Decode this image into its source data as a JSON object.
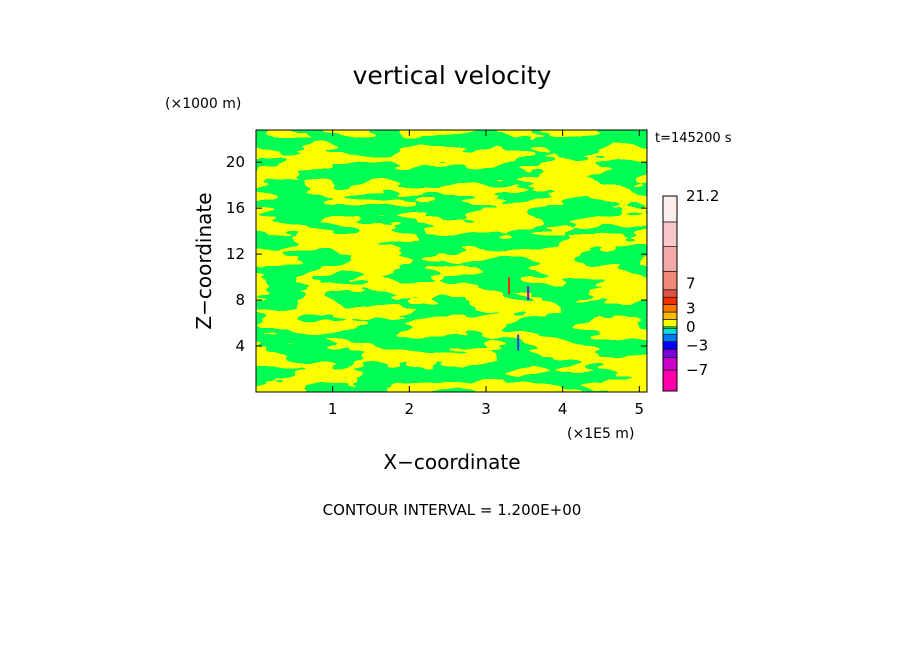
{
  "chart_data": {
    "type": "heatmap",
    "title": "vertical velocity",
    "xlabel": "X−coordinate",
    "ylabel": "Z−coordinate",
    "x_unit": "(×1E5 m)",
    "y_unit": "(×1000 m)",
    "time_label": "t=145200 s",
    "xlim": [
      0,
      5.1
    ],
    "ylim": [
      0,
      22.8
    ],
    "x_ticks": [
      "1",
      "2",
      "3",
      "4",
      "5"
    ],
    "x_tick_values": [
      1,
      2,
      3,
      4,
      5
    ],
    "y_ticks": [
      "4",
      "8",
      "12",
      "16",
      "20"
    ],
    "y_tick_values": [
      4,
      8,
      12,
      16,
      20
    ],
    "field_colors": {
      "positive": "#ffff00",
      "negative": "#00ff55"
    },
    "colorbar": {
      "labels": [
        "21.2",
        "7",
        "3",
        "0",
        "−3",
        "−7"
      ],
      "label_values": [
        21.2,
        7,
        3,
        0,
        -3,
        -7
      ],
      "vmin": -10.4,
      "vmax": 21.2,
      "bands": [
        {
          "from": -10.4,
          "to": -7.0,
          "color": "#ff00aa"
        },
        {
          "from": -7.0,
          "to": -5.0,
          "color": "#cc00cc"
        },
        {
          "from": -5.0,
          "to": -3.6,
          "color": "#7700dd"
        },
        {
          "from": -3.6,
          "to": -2.4,
          "color": "#0000ff"
        },
        {
          "from": -2.4,
          "to": -1.2,
          "color": "#0077ff"
        },
        {
          "from": -1.2,
          "to": -0.3,
          "color": "#00dddd"
        },
        {
          "from": -0.3,
          "to": 0.0,
          "color": "#00ff55"
        },
        {
          "from": 0.0,
          "to": 1.2,
          "color": "#ffff00"
        },
        {
          "from": 1.2,
          "to": 2.4,
          "color": "#ffbb00"
        },
        {
          "from": 2.4,
          "to": 3.6,
          "color": "#ff7700"
        },
        {
          "from": 3.6,
          "to": 4.8,
          "color": "#ee3300"
        },
        {
          "from": 4.8,
          "to": 6.0,
          "color": "#dd5544"
        },
        {
          "from": 6.0,
          "to": 9.0,
          "color": "#ee8877"
        },
        {
          "from": 9.0,
          "to": 13.0,
          "color": "#f4a8a8"
        },
        {
          "from": 13.0,
          "to": 17.0,
          "color": "#f8c8c8"
        },
        {
          "from": 17.0,
          "to": 21.2,
          "color": "#fdeeee"
        }
      ]
    },
    "annotation": "CONTOUR INTERVAL = 1.200E+00"
  }
}
